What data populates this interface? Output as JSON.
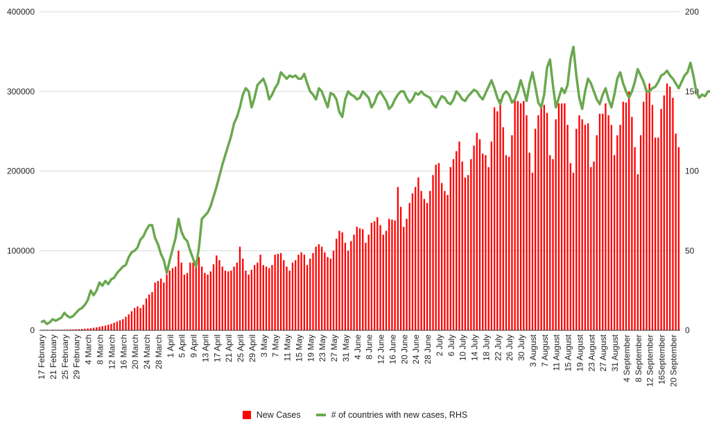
{
  "chart_data": {
    "type": "bar+line",
    "title": "",
    "y_left": {
      "ticks": [
        0,
        100000,
        200000,
        300000,
        400000
      ],
      "ylim": [
        0,
        400000
      ]
    },
    "y_right": {
      "ticks": [
        0,
        50,
        100,
        150,
        200
      ],
      "ylim": [
        0,
        200
      ]
    },
    "x_tick_labels": [
      "17 February",
      "21 February",
      "25 February",
      "29 February",
      "4 March",
      "8 March",
      "12 March",
      "16 March",
      "20 March",
      "24 March",
      "28 March",
      "1 April",
      "5 April",
      "9 April",
      "13 April",
      "17 April",
      "21 April",
      "25 April",
      "29 April",
      "3 May",
      "7 May",
      "11 May",
      "15 May",
      "19 May",
      "23 May",
      "27 May",
      "31 May",
      "4 June",
      "8 June",
      "12 June",
      "16 June",
      "20 June",
      "24 June",
      "28 June",
      "2 July",
      "6 July",
      "10 July",
      "14 July",
      "18 July",
      "22 July",
      "26 July",
      "30 July",
      "3 August",
      "7 August",
      "11 August",
      "15 August",
      "19 August",
      "23 August",
      "27 August",
      "31 August",
      "4 September",
      "8 September",
      "12 September",
      "16September",
      "20 September"
    ],
    "grid": true,
    "legend_position": "bottom",
    "series": [
      {
        "name": "New Cases",
        "type": "bar",
        "axis": "left",
        "color": "#ff0000",
        "values": [
          500,
          600,
          700,
          500,
          800,
          600,
          700,
          800,
          900,
          1000,
          1100,
          1200,
          1300,
          1500,
          1700,
          2000,
          2300,
          2700,
          3200,
          3800,
          4500,
          5200,
          6000,
          7000,
          8000,
          9500,
          11000,
          12500,
          14000,
          17000,
          20000,
          24000,
          28000,
          30000,
          28000,
          32000,
          40000,
          45000,
          48000,
          60000,
          62000,
          65000,
          60000,
          70000,
          75000,
          78000,
          80000,
          100000,
          85000,
          70000,
          72000,
          85000,
          85000,
          84000,
          92000,
          80000,
          72000,
          70000,
          74000,
          83000,
          94000,
          88000,
          80000,
          75000,
          74000,
          75000,
          80000,
          85000,
          105000,
          90000,
          75000,
          70000,
          76000,
          82000,
          85000,
          95000,
          82000,
          80000,
          78000,
          82000,
          95000,
          96000,
          97000,
          88000,
          80000,
          75000,
          85000,
          88000,
          95000,
          98000,
          95000,
          82000,
          90000,
          97000,
          105000,
          108000,
          105000,
          98000,
          92000,
          90000,
          100000,
          115000,
          125000,
          123000,
          110000,
          100000,
          112000,
          120000,
          130000,
          128000,
          127000,
          110000,
          120000,
          135000,
          137000,
          142000,
          132000,
          120000,
          125000,
          140000,
          139000,
          138000,
          180000,
          155000,
          130000,
          140000,
          160000,
          172000,
          180000,
          192000,
          175000,
          165000,
          160000,
          175000,
          195000,
          208000,
          210000,
          185000,
          175000,
          170000,
          205000,
          215000,
          225000,
          237000,
          212000,
          192000,
          195000,
          215000,
          232000,
          248000,
          240000,
          222000,
          220000,
          205000,
          237000,
          280000,
          275000,
          290000,
          255000,
          220000,
          218000,
          245000,
          290000,
          288000,
          285000,
          288000,
          270000,
          223000,
          198000,
          253000,
          270000,
          282000,
          283000,
          273000,
          220000,
          215000,
          265000,
          285000,
          285000,
          285000,
          258000,
          210000,
          198000,
          253000,
          270000,
          265000,
          258000,
          260000,
          205000,
          212000,
          245000,
          272000,
          272000,
          285000,
          270000,
          258000,
          220000,
          245000,
          258000,
          287000,
          286000,
          300000,
          268000,
          230000,
          196000,
          245000,
          287000,
          303000,
          310000,
          283000,
          242000,
          242000,
          278000,
          295000,
          310000,
          306000,
          292000,
          247000,
          230000
        ]
      },
      {
        "name": "# of countries with new cases, RHS",
        "type": "line",
        "axis": "right",
        "color": "#6aa84f",
        "values": [
          5,
          6,
          4,
          5,
          7,
          6,
          7,
          8,
          11,
          9,
          8,
          9,
          11,
          13,
          14,
          16,
          19,
          25,
          22,
          25,
          30,
          28,
          31,
          29,
          32,
          33,
          36,
          38,
          40,
          41,
          46,
          49,
          50,
          52,
          57,
          59,
          63,
          66,
          66,
          58,
          54,
          48,
          44,
          36,
          44,
          51,
          58,
          70,
          62,
          58,
          56,
          50,
          45,
          40,
          52,
          70,
          72,
          74,
          78,
          84,
          90,
          97,
          104,
          110,
          116,
          122,
          130,
          134,
          140,
          148,
          152,
          150,
          140,
          146,
          154,
          156,
          158,
          153,
          145,
          148,
          152,
          155,
          162,
          160,
          158,
          160,
          159,
          160,
          158,
          158,
          161,
          155,
          150,
          148,
          145,
          152,
          150,
          145,
          140,
          149,
          148,
          145,
          137,
          134,
          145,
          150,
          148,
          147,
          145,
          146,
          150,
          148,
          146,
          140,
          143,
          148,
          150,
          147,
          144,
          139,
          141,
          145,
          148,
          150,
          150,
          146,
          143,
          145,
          149,
          148,
          150,
          148,
          147,
          146,
          142,
          140,
          144,
          147,
          146,
          143,
          142,
          145,
          150,
          148,
          145,
          144,
          147,
          149,
          151,
          150,
          147,
          145,
          149,
          153,
          157,
          152,
          146,
          142,
          148,
          150,
          148,
          143,
          145,
          150,
          157,
          151,
          144,
          155,
          162,
          153,
          143,
          140,
          148,
          165,
          170,
          154,
          140,
          146,
          152,
          149,
          154,
          170,
          178,
          160,
          146,
          139,
          150,
          158,
          155,
          150,
          145,
          142,
          148,
          152,
          145,
          140,
          148,
          158,
          162,
          155,
          150,
          146,
          150,
          156,
          164,
          160,
          156,
          150,
          150,
          152,
          153,
          156,
          160,
          161,
          163,
          160,
          158,
          155,
          152,
          156,
          160,
          162,
          168,
          160,
          150,
          146,
          148,
          147,
          150,
          150,
          140,
          152,
          158,
          160,
          162,
          164,
          165,
          160,
          155,
          150,
          145,
          150,
          155,
          160,
          162,
          160,
          156,
          155,
          150,
          152,
          155,
          158,
          157
        ]
      }
    ]
  },
  "legend": {
    "new_cases_label": "New Cases",
    "countries_label": "# of countries with new cases, RHS",
    "new_cases_color": "#ff0000",
    "countries_color": "#6aa84f"
  }
}
